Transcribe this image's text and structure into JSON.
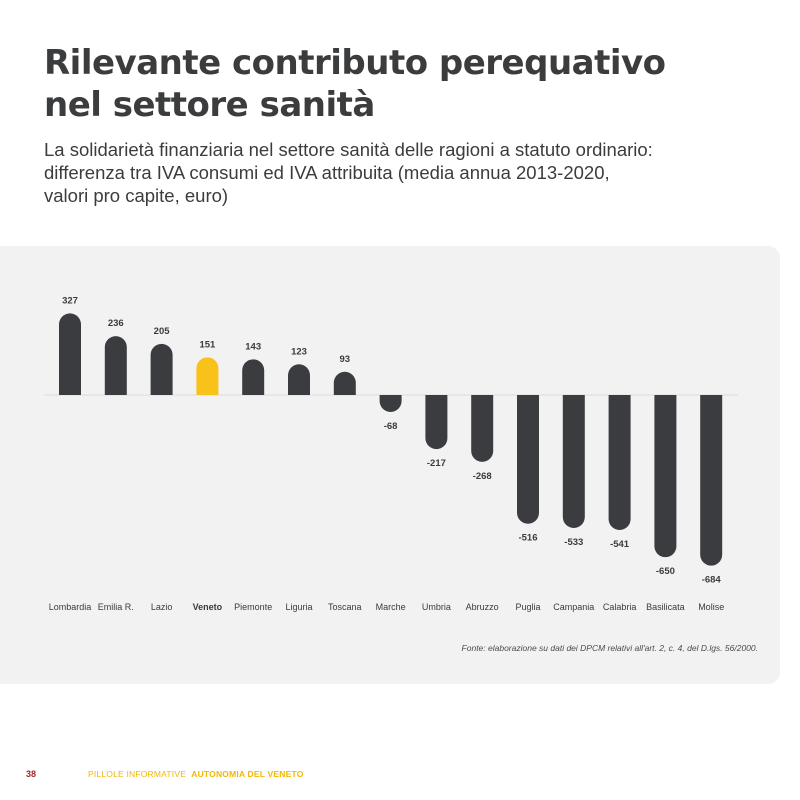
{
  "title_line1": "Rilevante contributo perequativo",
  "title_line2": "nel settore sanità",
  "subtitle_lines": [
    "La solidarietà finanziaria nel settore sanità delle ragioni a statuto ordinario:",
    "differenza tra IVA consumi ed IVA attribuita (media annua 2013-2020,",
    "valori pro capite, euro)"
  ],
  "chart_data": {
    "type": "bar",
    "categories": [
      "Lombardia",
      "Emilia R.",
      "Lazio",
      "Veneto",
      "Piemonte",
      "Liguria",
      "Toscana",
      "Marche",
      "Umbria",
      "Abruzzo",
      "Puglia",
      "Campania",
      "Calabria",
      "Basilicata",
      "Molise"
    ],
    "values": [
      327,
      236,
      205,
      151,
      143,
      123,
      93,
      -68,
      -217,
      -268,
      -516,
      -533,
      -541,
      -650,
      -684
    ],
    "value_labels": [
      "327",
      "236",
      "205",
      "151",
      "143",
      "123",
      "93",
      "-68",
      "-217",
      "-268",
      "-516",
      "-533",
      "-541",
      "-650",
      "-684"
    ],
    "highlight": "Veneto",
    "bar_color": "#3a3c3f",
    "highlight_color": "#f9c21b",
    "zero_line_color": "#dcdcdc",
    "ylim": [
      -684,
      327
    ],
    "grid": false
  },
  "source": "Fonte: elaborazione su dati dei DPCM relativi all'art. 2, c. 4, del D.lgs. 56/2000.",
  "footer": {
    "page_number": "38",
    "series": "PILLOLE INFORMATIVE",
    "series_title": "AUTONOMIA DEL VENETO"
  }
}
